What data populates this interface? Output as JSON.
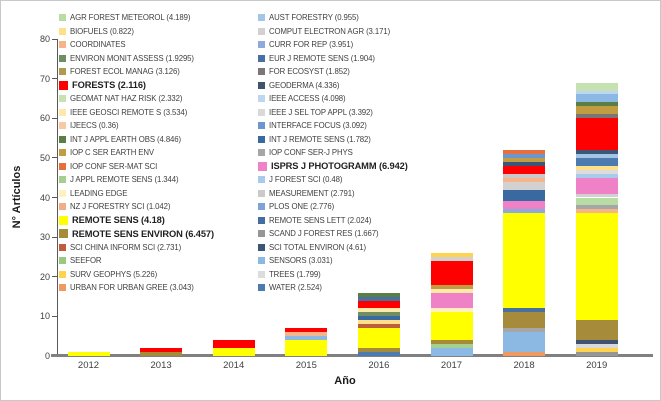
{
  "axes": {
    "y_label": "N° Artículos",
    "x_label": "Año",
    "y_min": 0,
    "y_max": 80,
    "y_step": 10,
    "axis_color": "#595959",
    "baseline_color": "#808080",
    "tick_text_color": "#3f3f3f"
  },
  "legend": [
    {
      "key": "AGR FOREST METEOROL",
      "label": "AGR FOREST METEOROL (4.189)",
      "color": "#b7dda4",
      "bold": false
    },
    {
      "key": "BIOFUELS",
      "label": "BIOFUELS (0.822)",
      "color": "#ffe08a",
      "bold": false
    },
    {
      "key": "COORDINATES",
      "label": "COORDINATES",
      "color": "#f6b48a",
      "bold": false
    },
    {
      "key": "ENVIRON MONIT ASSESS",
      "label": "ENVIRON MONIT ASSESS (1.9295)",
      "color": "#6f8f63",
      "bold": false
    },
    {
      "key": "FOREST ECOL MANAG",
      "label": "FOREST ECOL MANAG (3.126)",
      "color": "#b09a50",
      "bold": false
    },
    {
      "key": "FORESTS",
      "label": "FORESTS (2.116)",
      "color": "#ff0000",
      "bold": true
    },
    {
      "key": "GEOMAT NAT HAZ RISK",
      "label": "GEOMAT NAT HAZ RISK (2.332)",
      "color": "#c7e2b1",
      "bold": false
    },
    {
      "key": "IEEE GEOSCI REMOTE S",
      "label": "IEEE GEOSCI REMOTE S (3.534)",
      "color": "#ffe9a8",
      "bold": false
    },
    {
      "key": "IJEECS",
      "label": "IJEECS (0.36)",
      "color": "#f8c9a4",
      "bold": false
    },
    {
      "key": "INT J APPL EARTH OBS",
      "label": "INT J APPL EARTH OBS (4.846)",
      "color": "#5b7d46",
      "bold": false
    },
    {
      "key": "IOP C SER EARTH ENV",
      "label": "IOP C SER EARTH ENV",
      "color": "#c09c42",
      "bold": false
    },
    {
      "key": "IOP CONF SER-MAT SCI",
      "label": "IOP CONF SER-MAT SCI",
      "color": "#e6703d",
      "bold": false
    },
    {
      "key": "J APPL REMOTE SENS",
      "label": "J APPL REMOTE SENS (1.344)",
      "color": "#a5cf8d",
      "bold": false
    },
    {
      "key": "LEADING EDGE",
      "label": "LEADING EDGE",
      "color": "#fff0c0",
      "bold": false
    },
    {
      "key": "NZ J FORESTRY SCI",
      "label": "NZ J FORESTRY SCI (1.042)",
      "color": "#f3ad85",
      "bold": false
    },
    {
      "key": "REMOTE SENS",
      "label": "REMOTE SENS (4.18)",
      "color": "#ffff00",
      "bold": true
    },
    {
      "key": "REMOTE SENS ENVIRON",
      "label": "REMOTE SENS ENVIRON (6.457)",
      "color": "#a68c3a",
      "bold": true
    },
    {
      "key": "SCI CHINA INFORM SCI",
      "label": "SCI CHINA INFORM SCI (2.731)",
      "color": "#bd5f3a",
      "bold": false
    },
    {
      "key": "SEEFOR",
      "label": "SEEFOR",
      "color": "#98c97e",
      "bold": false
    },
    {
      "key": "SURV GEOPHYS",
      "label": "SURV GEOPHYS (5.226)",
      "color": "#ffd34d",
      "bold": false
    },
    {
      "key": "URBAN FOR URBAN GREE",
      "label": "URBAN FOR URBAN GREE (3.043)",
      "color": "#ef9a61",
      "bold": false
    },
    {
      "key": "AUST FORESTRY",
      "label": "AUST FORESTRY (0.955)",
      "color": "#a2c5e8",
      "bold": false
    },
    {
      "key": "COMPUT ELECTRON AGR",
      "label": "COMPUT ELECTRON AGR (3.171)",
      "color": "#d2d0d0",
      "bold": false
    },
    {
      "key": "CURR FOR REP",
      "label": "CURR FOR REP (3.951)",
      "color": "#8ea9db",
      "bold": false
    },
    {
      "key": "EUR J REMOTE SENS",
      "label": "EUR J REMOTE SENS (1.904)",
      "color": "#49719f",
      "bold": false
    },
    {
      "key": "FOR ECOSYST",
      "label": "FOR ECOSYST (1.852)",
      "color": "#7b7575",
      "bold": false
    },
    {
      "key": "GEODERMA",
      "label": "GEODERMA (4.336)",
      "color": "#3f5371",
      "bold": false
    },
    {
      "key": "IEEE ACCESS",
      "label": "IEEE ACCESS (4.098)",
      "color": "#bcd7ef",
      "bold": false
    },
    {
      "key": "IEEE J SEL TOP APPL",
      "label": "IEEE J SEL TOP APPL (3.392)",
      "color": "#d9d9d9",
      "bold": false
    },
    {
      "key": "INTERFACE FOCUS",
      "label": "INTERFACE FOCUS (3.092)",
      "color": "#6d96cf",
      "bold": false
    },
    {
      "key": "INT J REMOTE SENS",
      "label": "INT J REMOTE SENS (1.782)",
      "color": "#39699e",
      "bold": false
    },
    {
      "key": "IOP CONF SER-J PHYS",
      "label": "IOP CONF SER-J PHYS",
      "color": "#a6a6a6",
      "bold": false
    },
    {
      "key": "ISPRS J PHOTOGRAMM",
      "label": "ISPRS J PHOTOGRAMM (6.942)",
      "color": "#ef82c6",
      "bold": true
    },
    {
      "key": "J FOREST SCI",
      "label": "J FOREST SCI (0.48)",
      "color": "#a8cbec",
      "bold": false
    },
    {
      "key": "MEASUREMENT",
      "label": "MEASUREMENT (2.791)",
      "color": "#cbc9c9",
      "bold": false
    },
    {
      "key": "PLOS ONE",
      "label": "PLOS ONE (2.776)",
      "color": "#7fa3d8",
      "bold": false
    },
    {
      "key": "REMOTE SENS LETT",
      "label": "REMOTE SENS LETT (2.024)",
      "color": "#436d9e",
      "bold": false
    },
    {
      "key": "SCAND J FOREST RES",
      "label": "SCAND J FOREST RES (1.667)",
      "color": "#969696",
      "bold": false
    },
    {
      "key": "SCI TOTAL ENVIRON",
      "label": "SCI TOTAL ENVIRON (4.61)",
      "color": "#3c5677",
      "bold": false
    },
    {
      "key": "SENSORS",
      "label": "SENSORS (3.031)",
      "color": "#8cb8e4",
      "bold": false
    },
    {
      "key": "TREES",
      "label": "TREES (1.799)",
      "color": "#dcdcdc",
      "bold": false
    },
    {
      "key": "WATER",
      "label": "WATER (2.524)",
      "color": "#4d7aaf",
      "bold": false
    }
  ],
  "chart_data": {
    "type": "bar",
    "stacked": true,
    "title": "",
    "xlabel": "Año",
    "ylabel": "N° Artículos",
    "ylim": [
      0,
      80
    ],
    "grid": false,
    "legend_position": "top-inside-two-columns",
    "categories": [
      "2012",
      "2013",
      "2014",
      "2015",
      "2016",
      "2017",
      "2018",
      "2019"
    ],
    "totals": [
      1,
      2,
      4,
      7,
      16,
      26,
      52,
      69
    ],
    "bars": [
      {
        "year": "2012",
        "segments": [
          {
            "name": "REMOTE SENS",
            "value": 1
          }
        ]
      },
      {
        "year": "2013",
        "segments": [
          {
            "name": "REMOTE SENS ENVIRON",
            "value": 1
          },
          {
            "name": "FORESTS",
            "value": 1
          }
        ]
      },
      {
        "year": "2014",
        "segments": [
          {
            "name": "REMOTE SENS",
            "value": 2
          },
          {
            "name": "FORESTS",
            "value": 2
          }
        ]
      },
      {
        "year": "2015",
        "segments": [
          {
            "name": "REMOTE SENS",
            "value": 4
          },
          {
            "name": "SENSORS",
            "value": 1
          },
          {
            "name": "COORDINATES",
            "value": 1
          },
          {
            "name": "FORESTS",
            "value": 1
          }
        ]
      },
      {
        "year": "2016",
        "segments": [
          {
            "name": "WATER",
            "value": 1
          },
          {
            "name": "REMOTE SENS ENVIRON",
            "value": 1
          },
          {
            "name": "REMOTE SENS",
            "value": 5
          },
          {
            "name": "SCI CHINA INFORM SCI",
            "value": 1
          },
          {
            "name": "BIOFUELS",
            "value": 1
          },
          {
            "name": "INT J REMOTE SENS",
            "value": 1
          },
          {
            "name": "ENVIRON MONIT ASSESS",
            "value": 1
          },
          {
            "name": "IEEE GEOSCI REMOTE S",
            "value": 1
          },
          {
            "name": "FORESTS",
            "value": 2
          },
          {
            "name": "EUR J REMOTE SENS",
            "value": 1
          },
          {
            "name": "INT J APPL EARTH OBS",
            "value": 1
          }
        ]
      },
      {
        "year": "2017",
        "segments": [
          {
            "name": "SENSORS",
            "value": 2
          },
          {
            "name": "J APPL REMOTE SENS",
            "value": 1
          },
          {
            "name": "REMOTE SENS ENVIRON",
            "value": 1
          },
          {
            "name": "REMOTE SENS",
            "value": 7
          },
          {
            "name": "LEADING EDGE",
            "value": 1
          },
          {
            "name": "ISPRS J PHOTOGRAMM",
            "value": 4
          },
          {
            "name": "IEEE GEOSCI REMOTE S",
            "value": 1
          },
          {
            "name": "IOP C SER EARTH ENV",
            "value": 1
          },
          {
            "name": "FORESTS",
            "value": 6
          },
          {
            "name": "COMPUT ELECTRON AGR",
            "value": 1
          },
          {
            "name": "SURV GEOPHYS",
            "value": 1
          }
        ]
      },
      {
        "year": "2018",
        "segments": [
          {
            "name": "URBAN FOR URBAN GREE",
            "value": 1
          },
          {
            "name": "SENSORS",
            "value": 5
          },
          {
            "name": "IOP CONF SER-J PHYS",
            "value": 1
          },
          {
            "name": "REMOTE SENS ENVIRON",
            "value": 4
          },
          {
            "name": "EUR J REMOTE SENS",
            "value": 1
          },
          {
            "name": "REMOTE SENS",
            "value": 24
          },
          {
            "name": "CURR FOR REP",
            "value": 1
          },
          {
            "name": "ISPRS J PHOTOGRAMM",
            "value": 2
          },
          {
            "name": "INT J REMOTE SENS",
            "value": 3
          },
          {
            "name": "COMPUT ELECTRON AGR",
            "value": 2
          },
          {
            "name": "COORDINATES",
            "value": 1
          },
          {
            "name": "MEASUREMENT",
            "value": 1
          },
          {
            "name": "FORESTS",
            "value": 2
          },
          {
            "name": "SCI TOTAL ENVIRON",
            "value": 1
          },
          {
            "name": "IOP C SER EARTH ENV",
            "value": 1
          },
          {
            "name": "INTERFACE FOCUS",
            "value": 1
          },
          {
            "name": "IOP CONF SER-MAT SCI",
            "value": 1
          }
        ]
      },
      {
        "year": "2019",
        "segments": [
          {
            "name": "SCAND J FOREST RES",
            "value": 1
          },
          {
            "name": "SURV GEOPHYS",
            "value": 1
          },
          {
            "name": "IEEE J SEL TOP APPL",
            "value": 1
          },
          {
            "name": "GEODERMA",
            "value": 1
          },
          {
            "name": "REMOTE SENS ENVIRON",
            "value": 5
          },
          {
            "name": "REMOTE SENS",
            "value": 27
          },
          {
            "name": "COORDINATES",
            "value": 1
          },
          {
            "name": "IOP CONF SER-J PHYS",
            "value": 1
          },
          {
            "name": "AGR FOREST METEOROL",
            "value": 2
          },
          {
            "name": "COMPUT ELECTRON AGR",
            "value": 1
          },
          {
            "name": "ISPRS J PHOTOGRAMM",
            "value": 4
          },
          {
            "name": "J FOREST SCI",
            "value": 1
          },
          {
            "name": "TREES",
            "value": 1
          },
          {
            "name": "BIOFUELS",
            "value": 1
          },
          {
            "name": "WATER",
            "value": 2
          },
          {
            "name": "AUST FORESTRY",
            "value": 1
          },
          {
            "name": "SCI TOTAL ENVIRON",
            "value": 1
          },
          {
            "name": "FORESTS",
            "value": 8
          },
          {
            "name": "FOR ECOSYST",
            "value": 1
          },
          {
            "name": "IOP C SER EARTH ENV",
            "value": 2
          },
          {
            "name": "INT J APPL EARTH OBS",
            "value": 1
          },
          {
            "name": "SENSORS",
            "value": 2
          },
          {
            "name": "IEEE ACCESS",
            "value": 1
          },
          {
            "name": "GEOMAT NAT HAZ RISK",
            "value": 2
          }
        ]
      }
    ]
  }
}
